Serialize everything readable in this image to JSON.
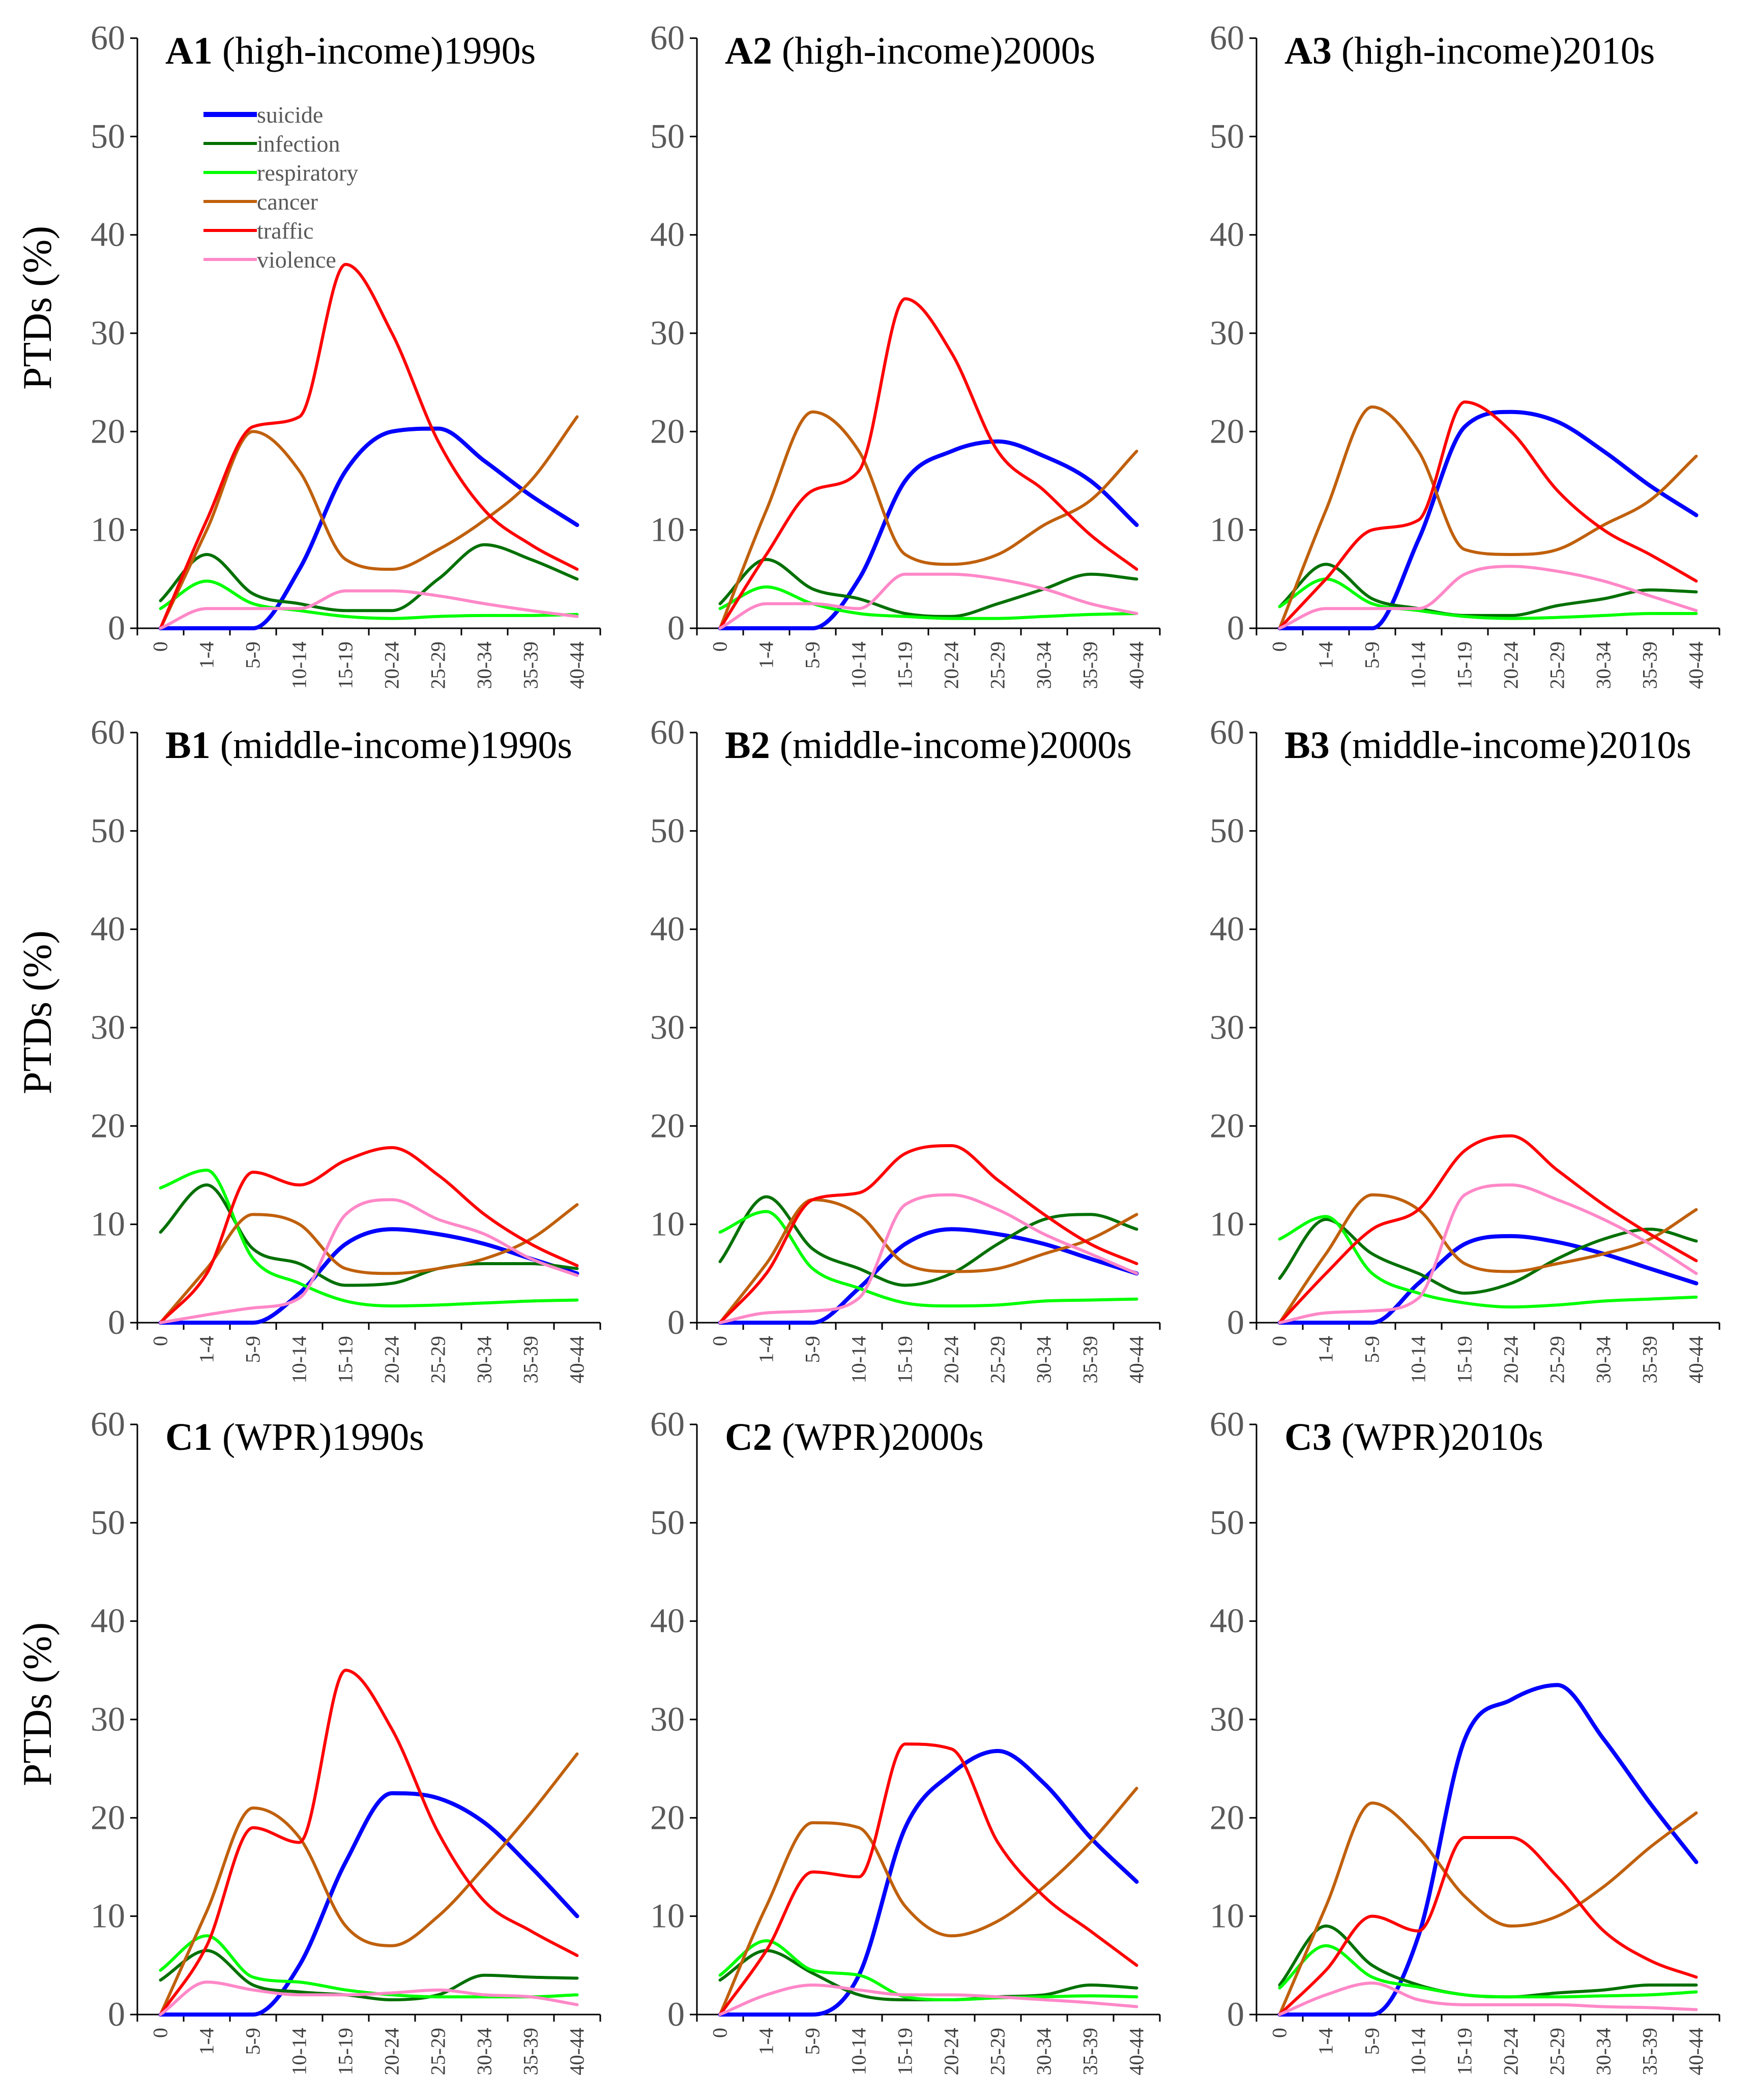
{
  "ylabel": "PTDs (%)",
  "colors": {
    "suicide": "#0000ff",
    "infection": "#007000",
    "respiratory": "#00ff00",
    "cancer": "#c0600c",
    "traffic": "#ff0000",
    "violence": "#ff88c8"
  },
  "legend": [
    "suicide",
    "infection",
    "respiratory",
    "cancer",
    "traffic",
    "violence"
  ],
  "chart_data": [
    {
      "type": "line",
      "id": "A1",
      "title": "(high-income)1990s",
      "ylabel": "PTDs (%)",
      "ylim": [
        0,
        60
      ],
      "yticks": [
        0,
        10,
        20,
        30,
        40,
        50,
        60
      ],
      "categories": [
        "0",
        "1-4",
        "5-9",
        "10-14",
        "15-19",
        "20-24",
        "25-29",
        "30-34",
        "35-39",
        "40-44"
      ],
      "series": [
        {
          "name": "suicide",
          "values": [
            0,
            0,
            0,
            6,
            16,
            20,
            20.3,
            17,
            13.5,
            10.5
          ]
        },
        {
          "name": "infection",
          "values": [
            2.8,
            7.5,
            3.5,
            2.5,
            1.8,
            1.8,
            5,
            8.5,
            7,
            5
          ]
        },
        {
          "name": "respiratory",
          "values": [
            2,
            4.8,
            2.5,
            1.8,
            1.2,
            1,
            1.2,
            1.3,
            1.3,
            1.4
          ]
        },
        {
          "name": "cancer",
          "values": [
            0,
            10,
            20,
            16,
            7,
            6,
            8,
            11,
            15,
            21.5
          ]
        },
        {
          "name": "traffic",
          "values": [
            0,
            11,
            20.5,
            21.5,
            37,
            30,
            19,
            12,
            8.5,
            6
          ]
        },
        {
          "name": "violence",
          "values": [
            0,
            2,
            2,
            2,
            3.8,
            3.8,
            3.3,
            2.5,
            1.8,
            1.2
          ]
        }
      ]
    },
    {
      "type": "line",
      "id": "A2",
      "title": "(high-income)2000s",
      "ylabel": "PTDs (%)",
      "ylim": [
        0,
        60
      ],
      "yticks": [
        0,
        10,
        20,
        30,
        40,
        50,
        60
      ],
      "categories": [
        "0",
        "1-4",
        "5-9",
        "10-14",
        "15-19",
        "20-24",
        "25-29",
        "30-34",
        "35-39",
        "40-44"
      ],
      "series": [
        {
          "name": "suicide",
          "values": [
            0,
            0,
            0,
            5,
            15,
            18,
            19,
            17.5,
            15,
            10.5
          ]
        },
        {
          "name": "infection",
          "values": [
            2.5,
            7,
            4,
            3,
            1.5,
            1.2,
            2.5,
            4,
            5.5,
            5
          ]
        },
        {
          "name": "respiratory",
          "values": [
            2,
            4.2,
            2.5,
            1.5,
            1.2,
            1,
            1,
            1.2,
            1.4,
            1.5
          ]
        },
        {
          "name": "cancer",
          "values": [
            0,
            12,
            22,
            18,
            7.5,
            6.5,
            7.5,
            10.5,
            13,
            18
          ]
        },
        {
          "name": "traffic",
          "values": [
            0,
            7.5,
            14,
            16,
            33.5,
            28,
            18,
            14,
            9.5,
            6
          ]
        },
        {
          "name": "violence",
          "values": [
            0,
            2.5,
            2.5,
            2,
            5.5,
            5.5,
            5,
            4,
            2.5,
            1.5
          ]
        }
      ]
    },
    {
      "type": "line",
      "id": "A3",
      "title": "(high-income)2010s",
      "ylabel": "PTDs (%)",
      "ylim": [
        0,
        60
      ],
      "yticks": [
        0,
        10,
        20,
        30,
        40,
        50,
        60
      ],
      "categories": [
        "0",
        "1-4",
        "5-9",
        "10-14",
        "15-19",
        "20-24",
        "25-29",
        "30-34",
        "35-39",
        "40-44"
      ],
      "series": [
        {
          "name": "suicide",
          "values": [
            0,
            0,
            0,
            9,
            20.5,
            22,
            21,
            18,
            14.5,
            11.5
          ]
        },
        {
          "name": "infection",
          "values": [
            2.2,
            6.5,
            3,
            2,
            1.3,
            1.3,
            2.3,
            3,
            3.9,
            3.7
          ]
        },
        {
          "name": "respiratory",
          "values": [
            2.2,
            5,
            2.5,
            1.8,
            1.2,
            1,
            1.1,
            1.3,
            1.5,
            1.5
          ]
        },
        {
          "name": "cancer",
          "values": [
            0,
            12,
            22.5,
            18,
            8,
            7.5,
            8,
            10.5,
            13,
            17.5
          ]
        },
        {
          "name": "traffic",
          "values": [
            0,
            5,
            10,
            11,
            23,
            20,
            14,
            10,
            7.5,
            4.8
          ]
        },
        {
          "name": "violence",
          "values": [
            0,
            2,
            2,
            2,
            5.5,
            6.3,
            5.8,
            4.8,
            3.3,
            1.8
          ]
        }
      ]
    },
    {
      "type": "line",
      "id": "B1",
      "title": "(middle-income)1990s",
      "ylabel": "PTDs (%)",
      "ylim": [
        0,
        60
      ],
      "yticks": [
        0,
        10,
        20,
        30,
        40,
        50,
        60
      ],
      "categories": [
        "0",
        "1-4",
        "5-9",
        "10-14",
        "15-19",
        "20-24",
        "25-29",
        "30-34",
        "35-39",
        "40-44"
      ],
      "series": [
        {
          "name": "suicide",
          "values": [
            0,
            0,
            0,
            3,
            8,
            9.5,
            9,
            8,
            6.5,
            5
          ]
        },
        {
          "name": "infection",
          "values": [
            9.2,
            14,
            7.5,
            6,
            3.8,
            4,
            5.5,
            6,
            6,
            5.5
          ]
        },
        {
          "name": "respiratory",
          "values": [
            13.7,
            15.5,
            6.5,
            4,
            2.2,
            1.7,
            1.8,
            2,
            2.2,
            2.3
          ]
        },
        {
          "name": "cancer",
          "values": [
            0,
            5.5,
            11,
            10,
            5.5,
            5,
            5.5,
            6.5,
            8.5,
            12
          ]
        },
        {
          "name": "traffic",
          "values": [
            0,
            5,
            15.3,
            14,
            16.5,
            17.8,
            15,
            11,
            8,
            5.8
          ]
        },
        {
          "name": "violence",
          "values": [
            0,
            0.8,
            1.5,
            2.5,
            11,
            12.5,
            10.5,
            9,
            6.5,
            4.8
          ]
        }
      ]
    },
    {
      "type": "line",
      "id": "B2",
      "title": "(middle-income)2000s",
      "ylabel": "PTDs (%)",
      "ylim": [
        0,
        60
      ],
      "yticks": [
        0,
        10,
        20,
        30,
        40,
        50,
        60
      ],
      "categories": [
        "0",
        "1-4",
        "5-9",
        "10-14",
        "15-19",
        "20-24",
        "25-29",
        "30-34",
        "35-39",
        "40-44"
      ],
      "series": [
        {
          "name": "suicide",
          "values": [
            0,
            0,
            0,
            3.5,
            8,
            9.5,
            9,
            8,
            6.5,
            5
          ]
        },
        {
          "name": "infection",
          "values": [
            6.2,
            12.8,
            7.5,
            5.5,
            3.8,
            5,
            8,
            10.5,
            11,
            9.5
          ]
        },
        {
          "name": "respiratory",
          "values": [
            9.2,
            11.3,
            5.5,
            3.5,
            2,
            1.7,
            1.8,
            2.2,
            2.3,
            2.4
          ]
        },
        {
          "name": "cancer",
          "values": [
            0,
            6,
            12.5,
            11,
            6,
            5.2,
            5.5,
            7,
            8.5,
            11
          ]
        },
        {
          "name": "traffic",
          "values": [
            0,
            5,
            12.5,
            13.2,
            17.2,
            18,
            14.5,
            11,
            8,
            6
          ]
        },
        {
          "name": "violence",
          "values": [
            0,
            1,
            1.2,
            2.5,
            12,
            13,
            11.5,
            9,
            7,
            5
          ]
        }
      ]
    },
    {
      "type": "line",
      "id": "B3",
      "title": "(middle-income)2010s",
      "ylabel": "PTDs (%)",
      "ylim": [
        0,
        60
      ],
      "yticks": [
        0,
        10,
        20,
        30,
        40,
        50,
        60
      ],
      "categories": [
        "0",
        "1-4",
        "5-9",
        "10-14",
        "15-19",
        "20-24",
        "25-29",
        "30-34",
        "35-39",
        "40-44"
      ],
      "series": [
        {
          "name": "suicide",
          "values": [
            0,
            0,
            0,
            4,
            8,
            8.8,
            8.2,
            7,
            5.5,
            4
          ]
        },
        {
          "name": "infection",
          "values": [
            4.5,
            10.5,
            7,
            5,
            3,
            4,
            6.5,
            8.5,
            9.5,
            8.3
          ]
        },
        {
          "name": "respiratory",
          "values": [
            8.5,
            10.8,
            5,
            3,
            2,
            1.6,
            1.8,
            2.2,
            2.4,
            2.6
          ]
        },
        {
          "name": "cancer",
          "values": [
            0,
            7,
            13,
            11.5,
            6,
            5.2,
            6,
            7,
            8.5,
            11.5
          ]
        },
        {
          "name": "traffic",
          "values": [
            0,
            5,
            9.5,
            11.5,
            17.5,
            19,
            15.5,
            12,
            9,
            6.3
          ]
        },
        {
          "name": "violence",
          "values": [
            0,
            1,
            1.2,
            2.5,
            13,
            14,
            12.5,
            10.5,
            8,
            5
          ]
        }
      ]
    },
    {
      "type": "line",
      "id": "C1",
      "title": "(WPR)1990s",
      "ylabel": "PTDs (%)",
      "ylim": [
        0,
        60
      ],
      "yticks": [
        0,
        10,
        20,
        30,
        40,
        50,
        60
      ],
      "categories": [
        "0",
        "1-4",
        "5-9",
        "10-14",
        "15-19",
        "20-24",
        "25-29",
        "30-34",
        "35-39",
        "40-44"
      ],
      "series": [
        {
          "name": "suicide",
          "values": [
            0,
            0,
            0,
            5,
            15.5,
            22.5,
            22,
            19.5,
            15,
            10
          ]
        },
        {
          "name": "infection",
          "values": [
            3.5,
            6.5,
            3,
            2.3,
            2,
            1.5,
            2,
            4,
            3.8,
            3.7
          ]
        },
        {
          "name": "respiratory",
          "values": [
            4.5,
            8,
            3.8,
            3.3,
            2.5,
            2,
            1.8,
            1.8,
            1.8,
            2
          ]
        },
        {
          "name": "cancer",
          "values": [
            0,
            10.5,
            21,
            18,
            9,
            7,
            10,
            15,
            20.5,
            26.5
          ]
        },
        {
          "name": "traffic",
          "values": [
            0,
            7,
            19,
            17.5,
            35,
            29,
            18.5,
            11.5,
            8.5,
            6
          ]
        },
        {
          "name": "violence",
          "values": [
            0,
            3.3,
            2.5,
            2,
            2,
            2.2,
            2.5,
            2,
            1.8,
            1
          ]
        }
      ]
    },
    {
      "type": "line",
      "id": "C2",
      "title": "(WPR)2000s",
      "ylabel": "PTDs (%)",
      "ylim": [
        0,
        60
      ],
      "yticks": [
        0,
        10,
        20,
        30,
        40,
        50,
        60
      ],
      "categories": [
        "0",
        "1-4",
        "5-9",
        "10-14",
        "15-19",
        "20-24",
        "25-29",
        "30-34",
        "35-39",
        "40-44"
      ],
      "series": [
        {
          "name": "suicide",
          "values": [
            0,
            0,
            0,
            4,
            19,
            24.5,
            26.8,
            23.5,
            18,
            13.5
          ]
        },
        {
          "name": "infection",
          "values": [
            3.5,
            6.5,
            4.2,
            2,
            1.5,
            1.5,
            1.8,
            2,
            3,
            2.7
          ]
        },
        {
          "name": "respiratory",
          "values": [
            4,
            7.5,
            4.5,
            4,
            1.8,
            1.5,
            1.7,
            1.8,
            1.9,
            1.8
          ]
        },
        {
          "name": "cancer",
          "values": [
            0,
            11,
            19.5,
            19,
            11,
            8,
            9.5,
            13,
            17.5,
            23
          ]
        },
        {
          "name": "traffic",
          "values": [
            0,
            6.5,
            14.5,
            14,
            27.5,
            27,
            17.5,
            12,
            8.5,
            5
          ]
        },
        {
          "name": "violence",
          "values": [
            0,
            2,
            3,
            2.5,
            2,
            2,
            1.8,
            1.5,
            1.2,
            0.8
          ]
        }
      ]
    },
    {
      "type": "line",
      "id": "C3",
      "title": "(WPR)2010s",
      "ylabel": "PTDs (%)",
      "ylim": [
        0,
        60
      ],
      "yticks": [
        0,
        10,
        20,
        30,
        40,
        50,
        60
      ],
      "categories": [
        "0",
        "1-4",
        "5-9",
        "10-14",
        "15-19",
        "20-24",
        "25-29",
        "30-34",
        "35-39",
        "40-44"
      ],
      "series": [
        {
          "name": "suicide",
          "values": [
            0,
            0,
            0,
            8,
            28,
            32,
            33.5,
            28,
            21.5,
            15.5
          ]
        },
        {
          "name": "infection",
          "values": [
            3,
            9,
            5,
            3,
            2,
            1.8,
            2.2,
            2.5,
            3,
            3
          ]
        },
        {
          "name": "respiratory",
          "values": [
            2.7,
            7,
            3.8,
            2.8,
            2,
            1.8,
            1.8,
            1.9,
            2,
            2.3
          ]
        },
        {
          "name": "cancer",
          "values": [
            0,
            11,
            21.5,
            18,
            12,
            9,
            10,
            13,
            17,
            20.5
          ]
        },
        {
          "name": "traffic",
          "values": [
            0,
            4.5,
            10,
            8.5,
            18,
            18,
            14,
            8.5,
            5.5,
            3.8
          ]
        },
        {
          "name": "violence",
          "values": [
            0,
            2,
            3.2,
            1.5,
            1,
            1,
            1,
            0.8,
            0.7,
            0.5
          ]
        }
      ]
    }
  ]
}
